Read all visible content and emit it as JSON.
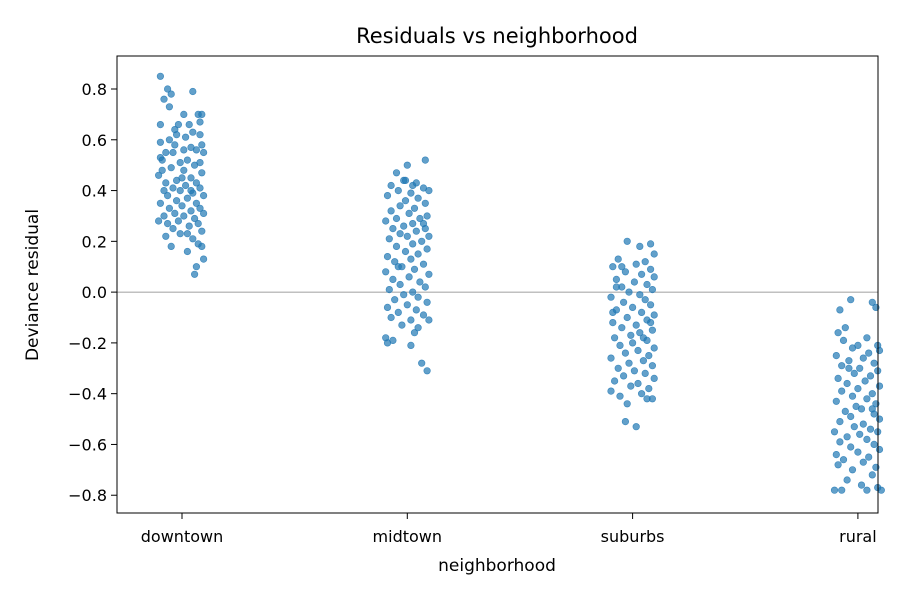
{
  "chart_data": {
    "type": "scatter",
    "title": "Residuals vs neighborhood",
    "xlabel": "neighborhood",
    "ylabel": "Deviance residual",
    "categories": [
      "downtown",
      "midtown",
      "suburbs",
      "rural"
    ],
    "ylim": [
      -0.87,
      0.93
    ],
    "yticks": [
      -0.8,
      -0.6,
      -0.4,
      -0.2,
      0.0,
      0.2,
      0.4,
      0.6,
      0.8
    ],
    "ytick_labels": [
      "−0.8",
      "−0.6",
      "−0.4",
      "−0.2",
      "0.0",
      "0.2",
      "0.4",
      "0.6",
      "0.8"
    ],
    "reference_line": 0,
    "grid": false,
    "marker_color": "#1f77b4",
    "reference_line_color": "#808080",
    "series": [
      {
        "category": "downtown",
        "points": [
          [
            -0.12,
            0.85
          ],
          [
            -0.08,
            0.8
          ],
          [
            -0.06,
            0.78
          ],
          [
            0.06,
            0.79
          ],
          [
            -0.1,
            0.76
          ],
          [
            0.11,
            0.7
          ],
          [
            0.09,
            0.7
          ],
          [
            -0.07,
            0.73
          ],
          [
            0.01,
            0.7
          ],
          [
            0.04,
            0.66
          ],
          [
            0.1,
            0.67
          ],
          [
            -0.12,
            0.66
          ],
          [
            -0.04,
            0.64
          ],
          [
            0.06,
            0.63
          ],
          [
            0.1,
            0.62
          ],
          [
            -0.03,
            0.62
          ],
          [
            0.02,
            0.61
          ],
          [
            -0.12,
            0.59
          ],
          [
            -0.07,
            0.6
          ],
          [
            -0.04,
            0.58
          ],
          [
            0.05,
            0.57
          ],
          [
            0.01,
            0.56
          ],
          [
            0.08,
            0.56
          ],
          [
            -0.05,
            0.55
          ],
          [
            0.12,
            0.55
          ],
          [
            -0.09,
            0.55
          ],
          [
            -0.11,
            0.52
          ],
          [
            0.03,
            0.52
          ],
          [
            -0.01,
            0.51
          ],
          [
            0.1,
            0.51
          ],
          [
            0.07,
            0.5
          ],
          [
            -0.06,
            0.49
          ],
          [
            0.01,
            0.48
          ],
          [
            -0.11,
            0.48
          ],
          [
            0.11,
            0.47
          ],
          [
            0.05,
            0.45
          ],
          [
            -0.13,
            0.46
          ],
          [
            -0.03,
            0.44
          ],
          [
            0.08,
            0.43
          ],
          [
            -0.09,
            0.43
          ],
          [
            0.02,
            0.42
          ],
          [
            -0.05,
            0.41
          ],
          [
            0.1,
            0.41
          ],
          [
            -0.1,
            0.4
          ],
          [
            -0.01,
            0.4
          ],
          [
            0.06,
            0.39
          ],
          [
            -0.08,
            0.38
          ],
          [
            0.12,
            0.38
          ],
          [
            0.03,
            0.37
          ],
          [
            -0.03,
            0.36
          ],
          [
            -0.12,
            0.35
          ],
          [
            0.08,
            0.35
          ],
          [
            0.0,
            0.34
          ],
          [
            -0.07,
            0.33
          ],
          [
            0.1,
            0.33
          ],
          [
            0.05,
            0.32
          ],
          [
            -0.04,
            0.31
          ],
          [
            0.12,
            0.31
          ],
          [
            -0.1,
            0.3
          ],
          [
            0.01,
            0.3
          ],
          [
            0.07,
            0.29
          ],
          [
            -0.02,
            0.28
          ],
          [
            -0.13,
            0.28
          ],
          [
            0.09,
            0.27
          ],
          [
            0.04,
            0.26
          ],
          [
            -0.05,
            0.25
          ],
          [
            0.11,
            0.24
          ],
          [
            -0.01,
            0.23
          ],
          [
            0.03,
            0.23
          ],
          [
            -0.09,
            0.22
          ],
          [
            0.06,
            0.21
          ],
          [
            0.09,
            0.19
          ],
          [
            -0.06,
            0.18
          ],
          [
            0.11,
            0.18
          ],
          [
            0.03,
            0.16
          ],
          [
            0.12,
            0.13
          ],
          [
            0.08,
            0.1
          ],
          [
            0.07,
            0.07
          ],
          [
            -0.12,
            0.53
          ],
          [
            0.11,
            0.58
          ],
          [
            -0.02,
            0.66
          ],
          [
            0.05,
            0.4
          ],
          [
            -0.08,
            0.27
          ],
          [
            0.0,
            0.45
          ]
        ]
      },
      {
        "category": "midtown",
        "points": [
          [
            0.1,
            0.52
          ],
          [
            0.0,
            0.5
          ],
          [
            -0.06,
            0.47
          ],
          [
            -0.02,
            0.44
          ],
          [
            0.05,
            0.43
          ],
          [
            0.03,
            0.42
          ],
          [
            -0.09,
            0.42
          ],
          [
            0.09,
            0.41
          ],
          [
            0.12,
            0.4
          ],
          [
            -0.05,
            0.4
          ],
          [
            0.02,
            0.39
          ],
          [
            -0.11,
            0.38
          ],
          [
            0.06,
            0.37
          ],
          [
            -0.01,
            0.36
          ],
          [
            0.1,
            0.35
          ],
          [
            -0.04,
            0.34
          ],
          [
            0.04,
            0.33
          ],
          [
            -0.09,
            0.32
          ],
          [
            0.01,
            0.31
          ],
          [
            0.11,
            0.3
          ],
          [
            -0.06,
            0.29
          ],
          [
            0.07,
            0.29
          ],
          [
            -0.12,
            0.28
          ],
          [
            0.03,
            0.27
          ],
          [
            -0.02,
            0.26
          ],
          [
            0.1,
            0.25
          ],
          [
            -0.08,
            0.25
          ],
          [
            0.05,
            0.24
          ],
          [
            -0.04,
            0.23
          ],
          [
            0.12,
            0.22
          ],
          [
            0.0,
            0.22
          ],
          [
            -0.1,
            0.21
          ],
          [
            0.08,
            0.2
          ],
          [
            0.03,
            0.19
          ],
          [
            -0.06,
            0.18
          ],
          [
            0.11,
            0.17
          ],
          [
            -0.01,
            0.16
          ],
          [
            0.06,
            0.15
          ],
          [
            -0.11,
            0.14
          ],
          [
            0.02,
            0.13
          ],
          [
            -0.07,
            0.12
          ],
          [
            0.09,
            0.11
          ],
          [
            -0.03,
            0.1
          ],
          [
            0.04,
            0.09
          ],
          [
            -0.12,
            0.08
          ],
          [
            0.12,
            0.07
          ],
          [
            0.01,
            0.06
          ],
          [
            -0.08,
            0.05
          ],
          [
            0.07,
            0.04
          ],
          [
            -0.04,
            0.03
          ],
          [
            0.1,
            0.02
          ],
          [
            -0.1,
            0.01
          ],
          [
            0.03,
            0.0
          ],
          [
            -0.02,
            -0.01
          ],
          [
            0.06,
            -0.02
          ],
          [
            -0.07,
            -0.03
          ],
          [
            0.11,
            -0.04
          ],
          [
            0.0,
            -0.05
          ],
          [
            -0.11,
            -0.06
          ],
          [
            0.05,
            -0.07
          ],
          [
            -0.05,
            -0.08
          ],
          [
            0.09,
            -0.09
          ],
          [
            -0.09,
            -0.1
          ],
          [
            0.02,
            -0.11
          ],
          [
            0.12,
            -0.11
          ],
          [
            -0.03,
            -0.13
          ],
          [
            0.06,
            -0.14
          ],
          [
            -0.12,
            -0.18
          ],
          [
            -0.08,
            -0.19
          ],
          [
            -0.11,
            -0.2
          ],
          [
            0.02,
            -0.21
          ],
          [
            0.08,
            -0.28
          ],
          [
            0.11,
            -0.31
          ],
          [
            -0.05,
            0.1
          ],
          [
            0.09,
            0.27
          ],
          [
            -0.01,
            0.44
          ],
          [
            0.04,
            -0.16
          ]
        ]
      },
      {
        "category": "suburbs",
        "points": [
          [
            -0.03,
            0.2
          ],
          [
            0.1,
            0.19
          ],
          [
            0.04,
            0.18
          ],
          [
            0.12,
            0.15
          ],
          [
            -0.08,
            0.13
          ],
          [
            0.07,
            0.12
          ],
          [
            0.02,
            0.11
          ],
          [
            -0.11,
            0.1
          ],
          [
            0.1,
            0.09
          ],
          [
            -0.04,
            0.08
          ],
          [
            0.05,
            0.07
          ],
          [
            0.12,
            0.06
          ],
          [
            -0.09,
            0.05
          ],
          [
            0.01,
            0.04
          ],
          [
            0.08,
            0.03
          ],
          [
            -0.06,
            0.02
          ],
          [
            0.11,
            0.01
          ],
          [
            -0.02,
            0.0
          ],
          [
            0.04,
            -0.01
          ],
          [
            -0.12,
            -0.02
          ],
          [
            0.07,
            -0.03
          ],
          [
            -0.05,
            -0.04
          ],
          [
            0.1,
            -0.05
          ],
          [
            0.0,
            -0.06
          ],
          [
            -0.09,
            -0.07
          ],
          [
            0.05,
            -0.08
          ],
          [
            0.12,
            -0.09
          ],
          [
            -0.03,
            -0.1
          ],
          [
            0.08,
            -0.11
          ],
          [
            -0.11,
            -0.12
          ],
          [
            0.02,
            -0.13
          ],
          [
            -0.06,
            -0.14
          ],
          [
            0.11,
            -0.15
          ],
          [
            0.04,
            -0.16
          ],
          [
            -0.01,
            -0.17
          ],
          [
            -0.1,
            -0.18
          ],
          [
            0.08,
            -0.19
          ],
          [
            0.0,
            -0.2
          ],
          [
            -0.07,
            -0.21
          ],
          [
            0.12,
            -0.22
          ],
          [
            0.03,
            -0.23
          ],
          [
            -0.04,
            -0.24
          ],
          [
            0.09,
            -0.25
          ],
          [
            -0.12,
            -0.26
          ],
          [
            0.06,
            -0.27
          ],
          [
            -0.02,
            -0.28
          ],
          [
            0.11,
            -0.29
          ],
          [
            -0.08,
            -0.3
          ],
          [
            0.01,
            -0.31
          ],
          [
            0.07,
            -0.32
          ],
          [
            -0.05,
            -0.33
          ],
          [
            0.12,
            -0.34
          ],
          [
            -0.1,
            -0.35
          ],
          [
            0.03,
            -0.36
          ],
          [
            -0.01,
            -0.37
          ],
          [
            0.09,
            -0.38
          ],
          [
            -0.12,
            -0.39
          ],
          [
            0.05,
            -0.4
          ],
          [
            -0.07,
            -0.41
          ],
          [
            0.11,
            -0.42
          ],
          [
            -0.03,
            -0.44
          ],
          [
            0.08,
            -0.42
          ],
          [
            -0.04,
            -0.51
          ],
          [
            0.02,
            -0.53
          ],
          [
            -0.09,
            0.02
          ],
          [
            0.06,
            -0.18
          ],
          [
            -0.11,
            -0.08
          ],
          [
            0.1,
            -0.12
          ],
          [
            -0.06,
            0.1
          ]
        ]
      },
      {
        "category": "rural",
        "points": [
          [
            -0.04,
            -0.03
          ],
          [
            0.08,
            -0.04
          ],
          [
            -0.1,
            -0.07
          ],
          [
            0.1,
            -0.06
          ],
          [
            -0.07,
            -0.14
          ],
          [
            -0.11,
            -0.16
          ],
          [
            0.05,
            -0.18
          ],
          [
            -0.08,
            -0.19
          ],
          [
            0.11,
            -0.21
          ],
          [
            0.0,
            -0.21
          ],
          [
            -0.03,
            -0.22
          ],
          [
            0.12,
            -0.23
          ],
          [
            0.06,
            -0.24
          ],
          [
            -0.12,
            -0.25
          ],
          [
            0.03,
            -0.26
          ],
          [
            -0.05,
            -0.27
          ],
          [
            0.09,
            -0.28
          ],
          [
            -0.09,
            -0.29
          ],
          [
            0.01,
            -0.3
          ],
          [
            0.11,
            -0.31
          ],
          [
            -0.02,
            -0.32
          ],
          [
            0.07,
            -0.33
          ],
          [
            -0.11,
            -0.34
          ],
          [
            0.04,
            -0.35
          ],
          [
            -0.06,
            -0.36
          ],
          [
            0.12,
            -0.37
          ],
          [
            0.0,
            -0.38
          ],
          [
            -0.09,
            -0.39
          ],
          [
            0.08,
            -0.4
          ],
          [
            -0.03,
            -0.41
          ],
          [
            0.05,
            -0.42
          ],
          [
            -0.12,
            -0.43
          ],
          [
            0.1,
            -0.44
          ],
          [
            -0.01,
            -0.45
          ],
          [
            0.02,
            -0.46
          ],
          [
            -0.07,
            -0.47
          ],
          [
            0.09,
            -0.48
          ],
          [
            -0.04,
            -0.49
          ],
          [
            0.12,
            -0.5
          ],
          [
            -0.1,
            -0.51
          ],
          [
            0.03,
            -0.52
          ],
          [
            -0.02,
            -0.53
          ],
          [
            0.07,
            -0.54
          ],
          [
            -0.13,
            -0.55
          ],
          [
            0.11,
            -0.55
          ],
          [
            0.01,
            -0.56
          ],
          [
            -0.06,
            -0.57
          ],
          [
            0.05,
            -0.58
          ],
          [
            -0.1,
            -0.59
          ],
          [
            0.09,
            -0.6
          ],
          [
            -0.04,
            -0.61
          ],
          [
            0.12,
            -0.62
          ],
          [
            0.0,
            -0.63
          ],
          [
            -0.12,
            -0.64
          ],
          [
            0.06,
            -0.65
          ],
          [
            -0.08,
            -0.66
          ],
          [
            0.03,
            -0.67
          ],
          [
            -0.11,
            -0.68
          ],
          [
            0.1,
            -0.69
          ],
          [
            -0.03,
            -0.7
          ],
          [
            0.08,
            -0.72
          ],
          [
            -0.06,
            -0.74
          ],
          [
            0.02,
            -0.76
          ],
          [
            0.11,
            -0.77
          ],
          [
            -0.09,
            -0.78
          ],
          [
            0.05,
            -0.78
          ],
          [
            -0.13,
            -0.78
          ],
          [
            0.13,
            -0.78
          ],
          [
            -0.05,
            -0.3
          ],
          [
            0.08,
            -0.46
          ]
        ]
      }
    ]
  }
}
